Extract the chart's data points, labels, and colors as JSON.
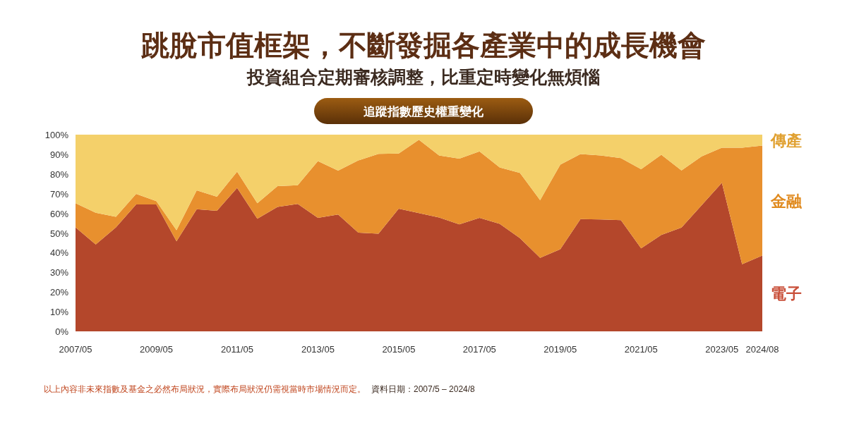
{
  "chart_data": {
    "type": "area",
    "title": "跳脫市值框架，不斷發掘各產業中的成長機會",
    "subtitle": "投資組合定期審核調整，比重定時變化無煩惱",
    "annotations": [
      "追蹤指數歷史權重變化",
      "以上內容非未來指數及基金之必然布局狀況，實際布局狀況仍需視當時市場情況而定。",
      "資料日期：2007/5 – 2024/8"
    ],
    "categories": [
      "2007/05",
      null,
      null,
      null,
      "2009/05",
      null,
      null,
      null,
      "2011/05",
      null,
      null,
      null,
      "2013/05",
      null,
      null,
      null,
      "2015/05",
      null,
      null,
      null,
      "2017/05",
      null,
      null,
      null,
      "2019/05",
      null,
      null,
      null,
      "2021/05",
      null,
      null,
      null,
      "2023/05",
      null,
      "2024/08"
    ],
    "stacked": true,
    "series": [
      {
        "name": "電子",
        "color": "#b4472b",
        "values": [
          52.9,
          44.2,
          52.9,
          64.5,
          64.5,
          45.8,
          62.1,
          61.3,
          72.9,
          57.3,
          63.3,
          64.8,
          57.7,
          59.4,
          50.2,
          49.6,
          62.4,
          60.1,
          57.9,
          54.4,
          57.7,
          54.7,
          47.4,
          37.4,
          41.8,
          57.1,
          56.9,
          56.5,
          42.2,
          49.0,
          52.8,
          64.2,
          75.5,
          34.1,
          38.5
        ]
      },
      {
        "name": "金融",
        "color": "#e8902e",
        "values": [
          12.2,
          16.1,
          5.3,
          5.4,
          1.7,
          5.6,
          9.6,
          7.2,
          8.3,
          7.8,
          10.5,
          9.5,
          28.9,
          22.3,
          36.7,
          40.6,
          28.0,
          37.3,
          31.5,
          33.4,
          33.8,
          28.6,
          33.2,
          29.3,
          43.0,
          33.0,
          32.5,
          31.6,
          40.2,
          40.8,
          29.0,
          24.8,
          17.9,
          59.3,
          55.9
        ]
      },
      {
        "name": "傳產",
        "color": "#f4d06a",
        "values": [
          34.9,
          39.7,
          41.8,
          30.1,
          33.8,
          48.6,
          28.3,
          31.5,
          18.8,
          34.9,
          26.2,
          25.7,
          13.4,
          18.3,
          13.1,
          9.8,
          9.6,
          2.6,
          10.6,
          12.2,
          8.5,
          16.7,
          19.4,
          33.3,
          15.2,
          9.9,
          10.6,
          11.9,
          17.6,
          10.2,
          18.2,
          11.0,
          6.6,
          6.6,
          5.6
        ]
      }
    ],
    "ylim": [
      0,
      100
    ],
    "yticks": [
      {
        "value": 0,
        "label": "0%"
      },
      {
        "value": 10,
        "label": "10%"
      },
      {
        "value": 20,
        "label": "20%"
      },
      {
        "value": 30,
        "label": "30%"
      },
      {
        "value": 40,
        "label": "40%"
      },
      {
        "value": 50,
        "label": "50%"
      },
      {
        "value": 60,
        "label": "60%"
      },
      {
        "value": 70,
        "label": "70%"
      },
      {
        "value": 80,
        "label": "80%"
      },
      {
        "value": 90,
        "label": "90%"
      },
      {
        "value": 100,
        "label": "100%"
      }
    ]
  }
}
